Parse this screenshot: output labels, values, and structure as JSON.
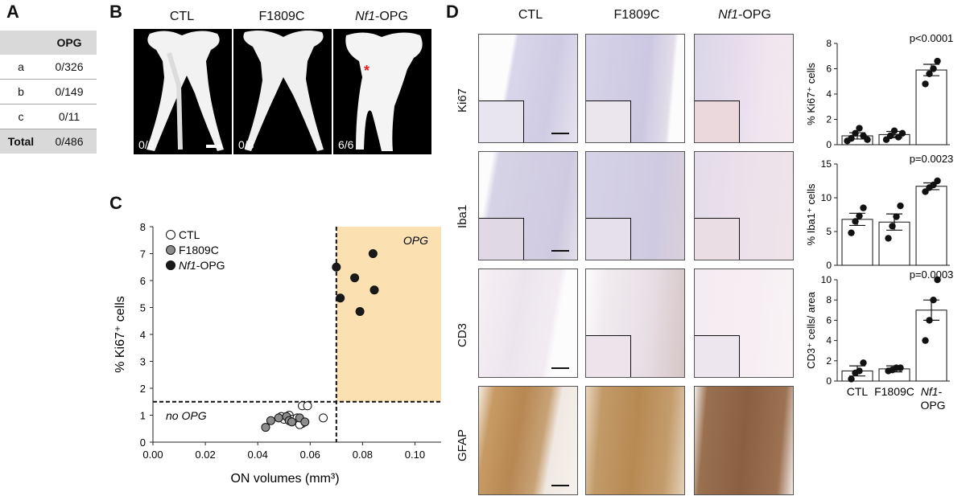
{
  "panels": {
    "a": "A",
    "b": "B",
    "c": "C",
    "d": "D"
  },
  "table_a": {
    "header": [
      "",
      "OPG"
    ],
    "rows": [
      {
        "label": "a",
        "value": "0/326"
      },
      {
        "label": "b",
        "value": "0/149"
      },
      {
        "label": "c",
        "value": "0/11"
      }
    ],
    "total": {
      "label": "Total",
      "value": "0/486"
    }
  },
  "panel_b": {
    "columns": [
      {
        "pre": "CTL",
        "italic": "",
        "post": "",
        "count": "0/6",
        "asterisk": ""
      },
      {
        "pre": "F1809C",
        "italic": "",
        "post": "",
        "count": "0/8",
        "asterisk": ""
      },
      {
        "pre": "",
        "italic": "Nf1",
        "post": "-OPG",
        "count": "6/6",
        "asterisk": "*"
      }
    ]
  },
  "panel_d": {
    "columns": [
      {
        "pre": "CTL",
        "italic": "",
        "post": ""
      },
      {
        "pre": "F1809C",
        "italic": "",
        "post": ""
      },
      {
        "pre": "",
        "italic": "Nf1",
        "post": "-OPG"
      }
    ],
    "rows": [
      "Ki67",
      "Iba1",
      "CD3",
      "GFAP"
    ]
  },
  "chart_data": [
    {
      "type": "scatter",
      "id": "C",
      "xlabel": "ON volumes  (mm³)",
      "ylabel": "% Ki67⁺ cells",
      "xlim": [
        0.0,
        0.11
      ],
      "ylim": [
        0,
        8
      ],
      "xticks": [
        "0.00",
        "0.02",
        "0.04",
        "0.06",
        "0.08",
        "0.10"
      ],
      "yticks": [
        "0",
        "1",
        "2",
        "3",
        "4",
        "5",
        "6",
        "7",
        "8"
      ],
      "threshold_x": 0.07,
      "threshold_y": 1.5,
      "region_label": "OPG",
      "region_color": "#fbe0b2",
      "lower_label": "no OPG",
      "legend": [
        {
          "pre": "CTL",
          "italic": "",
          "post": "",
          "color": "#ffffff"
        },
        {
          "pre": "F1809C",
          "italic": "",
          "post": "",
          "color": "#8c8c8c"
        },
        {
          "pre": "",
          "italic": "Nf1",
          "post": "-OPG",
          "color": "#1a1a1a"
        }
      ],
      "series": [
        {
          "name": "CTL",
          "color": "#ffffff",
          "points": [
            [
              0.049,
              0.95
            ],
            [
              0.052,
              1.0
            ],
            [
              0.053,
              0.85
            ],
            [
              0.055,
              0.9
            ],
            [
              0.057,
              0.7
            ],
            [
              0.057,
              1.35
            ],
            [
              0.059,
              1.35
            ],
            [
              0.065,
              0.9
            ],
            [
              0.05,
              0.85
            ],
            [
              0.056,
              0.65
            ]
          ]
        },
        {
          "name": "F1809C",
          "color": "#8c8c8c",
          "points": [
            [
              0.043,
              0.55
            ],
            [
              0.045,
              0.8
            ],
            [
              0.051,
              0.95
            ],
            [
              0.052,
              0.8
            ],
            [
              0.053,
              0.75
            ],
            [
              0.056,
              0.9
            ],
            [
              0.058,
              0.75
            ],
            [
              0.048,
              0.9
            ]
          ]
        },
        {
          "name": "Nf1-OPG",
          "color": "#1a1a1a",
          "points": [
            [
              0.07,
              6.5
            ],
            [
              0.0715,
              5.35
            ],
            [
              0.077,
              6.1
            ],
            [
              0.079,
              4.85
            ],
            [
              0.084,
              7.0
            ],
            [
              0.0845,
              5.65
            ]
          ]
        }
      ]
    },
    {
      "type": "bar",
      "id": "D-Ki67",
      "ylabel": "% Ki67⁺ cells",
      "ylim": [
        0,
        8
      ],
      "yticks": [
        "0",
        "2",
        "4",
        "6",
        "8"
      ],
      "categories": [
        "CTL",
        "F1809C",
        "Nf1-OPG"
      ],
      "values": [
        0.7,
        0.8,
        5.9
      ],
      "errors": [
        0.25,
        0.25,
        0.45
      ],
      "points": [
        [
          0.3,
          0.5,
          0.9,
          1.3,
          0.7,
          0.4
        ],
        [
          0.4,
          0.7,
          1.1,
          0.6,
          0.9
        ],
        [
          4.8,
          5.6,
          6.0,
          6.6
        ]
      ],
      "pvalue": "p<0.0001"
    },
    {
      "type": "bar",
      "id": "D-Iba1",
      "ylabel": "% Iba1⁺ cells",
      "ylim": [
        0,
        15
      ],
      "yticks": [
        "0",
        "5",
        "10",
        "15"
      ],
      "categories": [
        "CTL",
        "F1809C",
        "Nf1-OPG"
      ],
      "values": [
        6.8,
        6.4,
        11.7
      ],
      "errors": [
        0.9,
        1.2,
        0.5
      ],
      "points": [
        [
          4.8,
          6.5,
          7.3,
          8.5
        ],
        [
          4.0,
          5.8,
          7.2,
          8.8
        ],
        [
          10.9,
          11.5,
          11.9,
          12.5
        ]
      ],
      "pvalue": "p=0.0023"
    },
    {
      "type": "bar",
      "id": "D-CD3",
      "ylabel": "CD3⁺ cells/ area",
      "ylim": [
        0,
        10
      ],
      "yticks": [
        "0",
        "2",
        "4",
        "6",
        "8",
        "10"
      ],
      "categories": [
        "CTL",
        "F1809C",
        "Nf1-OPG"
      ],
      "xticklabels": [
        {
          "pre": "CTL",
          "italic": "",
          "post": ""
        },
        {
          "pre": "F1809C",
          "italic": "",
          "post": ""
        },
        {
          "pre": "",
          "italic": "Nf1",
          "post": "-",
          "line2": "OPG"
        }
      ],
      "values": [
        1.0,
        1.2,
        7.0
      ],
      "errors": [
        0.5,
        0.3,
        1.0
      ],
      "points": [
        [
          0.2,
          0.8,
          1.0,
          1.8
        ],
        [
          1.0,
          1.1,
          1.3,
          1.3
        ],
        [
          4.0,
          6.0,
          8.0,
          10.0
        ]
      ],
      "pvalue": "p=0.0003"
    }
  ]
}
